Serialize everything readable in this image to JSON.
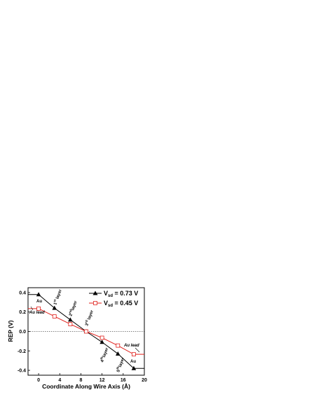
{
  "chart_data": {
    "type": "line",
    "xlabel": "Coordinate Along Wire Axis (Å)",
    "ylabel": "REP (V)",
    "xlim": [
      -2,
      20
    ],
    "ylim": [
      -0.45,
      0.45
    ],
    "x_ticks": [
      "0",
      "4",
      "8",
      "12",
      "16",
      "20"
    ],
    "y_ticks": [
      "0.4",
      "0.2",
      "0.0",
      "-0.2",
      "-0.4"
    ],
    "reference_line_y": 0.0,
    "legend_position": "top-right",
    "series": [
      {
        "name_prefix": "V",
        "name_sub": "sd",
        "name_suffix": " = 0.73 V",
        "color": "#000000",
        "marker": "filled-triangle",
        "x": [
          -2,
          0,
          3,
          6,
          9,
          12,
          15,
          18,
          20
        ],
        "y": [
          0.38,
          0.38,
          0.24,
          0.12,
          0.0,
          -0.11,
          -0.23,
          -0.38,
          -0.38
        ]
      },
      {
        "name_prefix": "V",
        "name_sub": "sd",
        "name_suffix": " = 0.45 V",
        "color": "#e0201b",
        "marker": "open-square",
        "x": [
          -2,
          0,
          3,
          6,
          9,
          12,
          15,
          18,
          20
        ],
        "y": [
          0.235,
          0.235,
          0.155,
          0.075,
          0.0,
          -0.065,
          -0.145,
          -0.235,
          -0.235
        ]
      }
    ],
    "annotations": {
      "au_top": "Au",
      "au_lead_left": "Au lead",
      "au_bottom": "Au",
      "au_lead_right": "Au lead",
      "layer1_num": "1",
      "layer1_sup": "st",
      "layer1_word": " layer",
      "layer2_num": "2",
      "layer2_sup": "nd",
      "layer2_word": "layer",
      "layer3_num": "3",
      "layer3_sup": "rd",
      "layer3_word": " layer",
      "layer4_num": "4",
      "layer4_sup": "th",
      "layer4_word": "layer",
      "layer5_num": "5",
      "layer5_sup": "th",
      "layer5_word": "layer"
    }
  }
}
